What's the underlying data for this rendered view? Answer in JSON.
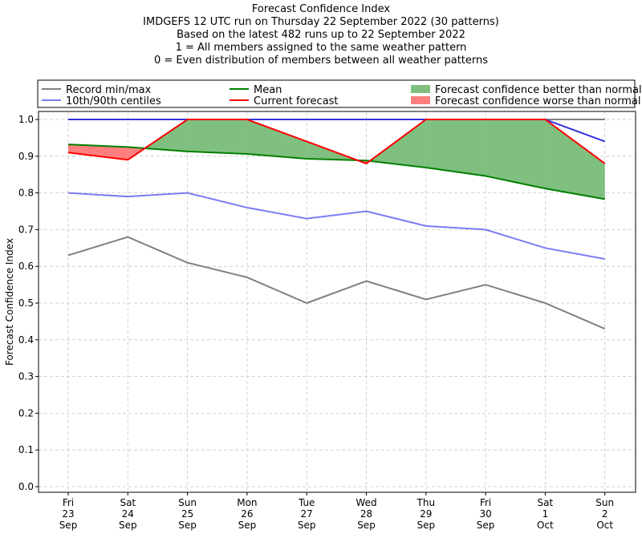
{
  "chart_data": {
    "type": "line",
    "title": "Forecast Confidence Index",
    "subtitle_lines": [
      "IMDGEFS 12 UTC run on Thursday 22 September 2022 (30 patterns)",
      "Based on the latest 482 runs up to 22 September 2022",
      "1 = All members assigned to the same weather pattern",
      "0 = Even distribution of members between all weather patterns"
    ],
    "ylabel": "Forecast Confidence Index",
    "xlabel": "",
    "ylim": [
      0,
      1.0
    ],
    "yticks": [
      "0.0",
      "0.1",
      "0.2",
      "0.3",
      "0.4",
      "0.5",
      "0.6",
      "0.7",
      "0.8",
      "0.9",
      "1.0"
    ],
    "grid": true,
    "legend_position": "top",
    "categories": [
      [
        "Fri",
        "23",
        "Sep"
      ],
      [
        "Sat",
        "24",
        "Sep"
      ],
      [
        "Sun",
        "25",
        "Sep"
      ],
      [
        "Mon",
        "26",
        "Sep"
      ],
      [
        "Tue",
        "27",
        "Sep"
      ],
      [
        "Wed",
        "28",
        "Sep"
      ],
      [
        "Thu",
        "29",
        "Sep"
      ],
      [
        "Fri",
        "30",
        "Sep"
      ],
      [
        "Sat",
        "1",
        "Oct"
      ],
      [
        "Sun",
        "2",
        "Oct"
      ]
    ],
    "series": [
      {
        "name": "Record min/max",
        "key": "record_min",
        "color": "#808080",
        "values": [
          0.63,
          0.68,
          0.61,
          0.57,
          0.5,
          0.56,
          0.51,
          0.55,
          0.5,
          0.43
        ]
      },
      {
        "name": "Record min/max",
        "key": "record_max",
        "color": "#808080",
        "values": [
          1.0,
          1.0,
          1.0,
          1.0,
          1.0,
          1.0,
          1.0,
          1.0,
          1.0,
          1.0
        ]
      },
      {
        "name": "10th/90th centiles",
        "key": "p10",
        "color": "#7b7bf5",
        "values": [
          0.8,
          0.79,
          0.8,
          0.76,
          0.73,
          0.75,
          0.71,
          0.7,
          0.65,
          0.62
        ]
      },
      {
        "name": "10th/90th centiles",
        "key": "p90",
        "color": "#3333dd",
        "values": [
          1.0,
          1.0,
          1.0,
          1.0,
          1.0,
          1.0,
          1.0,
          1.0,
          1.0,
          0.94
        ]
      },
      {
        "name": "Mean",
        "key": "mean",
        "color": "#008000",
        "values": [
          0.932,
          0.925,
          0.913,
          0.906,
          0.893,
          0.888,
          0.869,
          0.846,
          0.812,
          0.783
        ]
      },
      {
        "name": "Current forecast",
        "key": "current",
        "color": "#ff0000",
        "values": [
          0.91,
          0.89,
          1.0,
          1.0,
          0.94,
          0.88,
          1.0,
          1.0,
          1.0,
          0.88
        ]
      }
    ],
    "legend": [
      {
        "label": "Record min/max",
        "kind": "line",
        "color": "#808080"
      },
      {
        "label": "10th/90th centiles",
        "kind": "line",
        "color": "#7b7bf5"
      },
      {
        "label": "Mean",
        "kind": "line",
        "color": "#008000"
      },
      {
        "label": "Current forecast",
        "kind": "line",
        "color": "#ff0000"
      },
      {
        "label": "Forecast confidence better than normal",
        "kind": "patch",
        "color": "#7fbf7f"
      },
      {
        "label": "Forecast confidence worse than normal",
        "kind": "patch",
        "color": "#ff7f7f"
      }
    ],
    "fill_better_color": "#7fbf7f",
    "fill_worse_color": "#ff7f7f"
  }
}
